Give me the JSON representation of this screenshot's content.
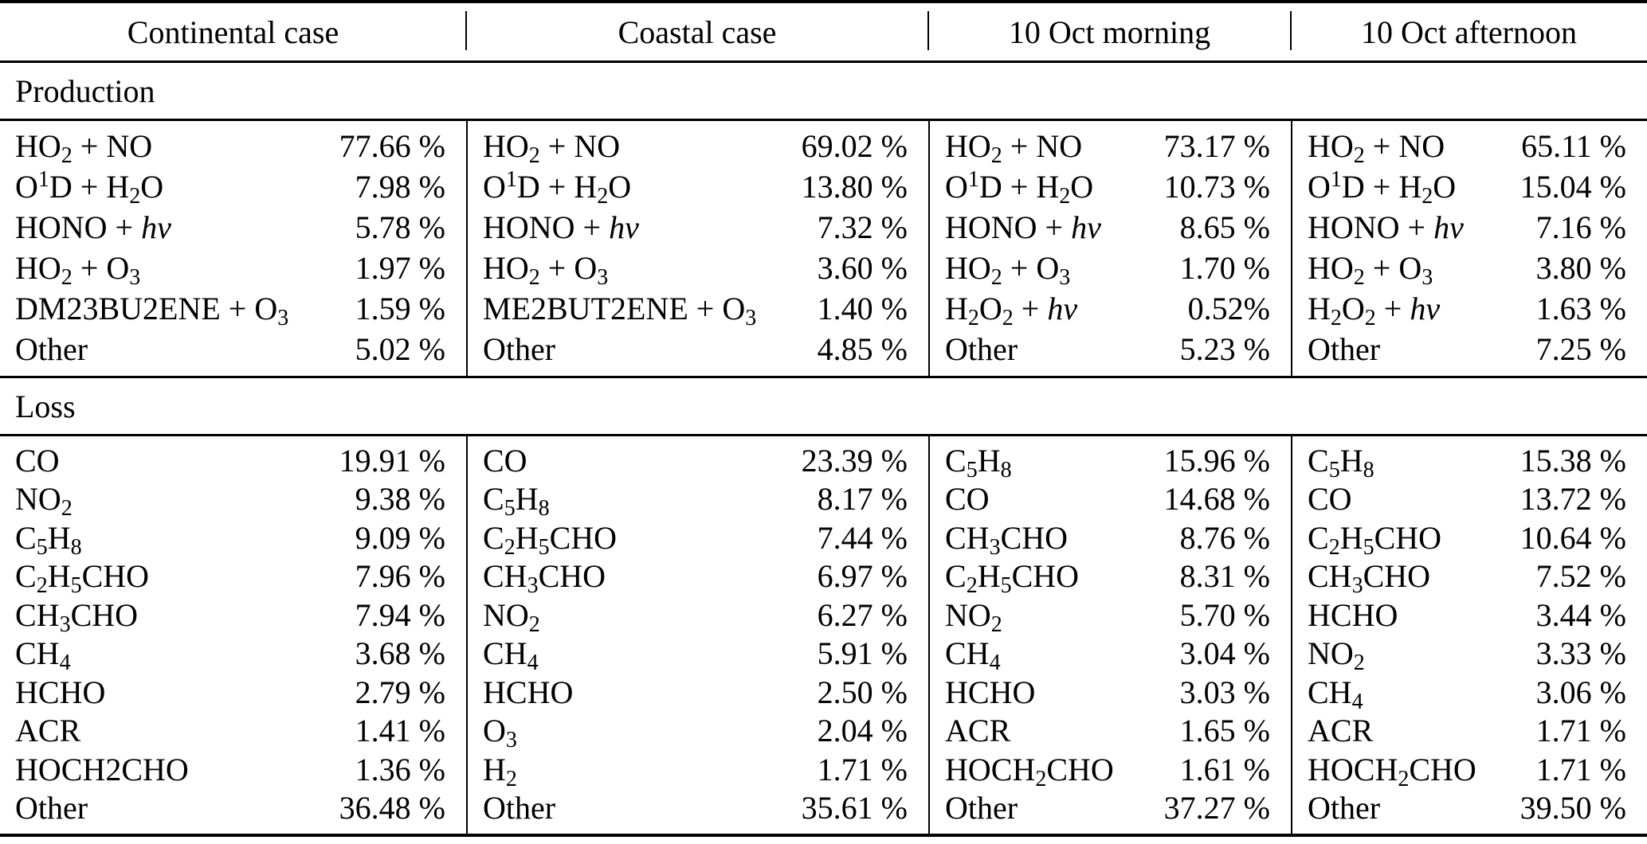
{
  "table": {
    "section_labels": {
      "production": "Production",
      "loss": "Loss"
    },
    "columns": [
      {
        "header": "Continental case",
        "production": [
          {
            "species": "HO_2_ + NO",
            "value": "77.66 %"
          },
          {
            "species": "O^1^D + H_2_O",
            "value": "7.98 %"
          },
          {
            "species": "HONO + *hv*",
            "value": "5.78 %"
          },
          {
            "species": "HO_2_ + O_3_",
            "value": "1.97 %"
          },
          {
            "species": "DM23BU2ENE + O_3_",
            "value": "1.59 %"
          },
          {
            "species": "Other",
            "value": "5.02 %"
          }
        ],
        "loss": [
          {
            "species": "CO",
            "value": "19.91 %"
          },
          {
            "species": "NO_2_",
            "value": "9.38 %"
          },
          {
            "species": "C_5_H_8_",
            "value": "9.09 %"
          },
          {
            "species": "C_2_H_5_CHO",
            "value": "7.96 %"
          },
          {
            "species": "CH_3_CHO",
            "value": "7.94 %"
          },
          {
            "species": "CH_4_",
            "value": "3.68 %"
          },
          {
            "species": "HCHO",
            "value": "2.79 %"
          },
          {
            "species": "ACR",
            "value": "1.41 %"
          },
          {
            "species": "HOCH2CHO",
            "value": "1.36 %"
          },
          {
            "species": "Other",
            "value": "36.48 %"
          }
        ]
      },
      {
        "header": "Coastal case",
        "production": [
          {
            "species": "HO_2_ + NO",
            "value": "69.02 %"
          },
          {
            "species": "O^1^D + H_2_O",
            "value": "13.80 %"
          },
          {
            "species": "HONO + *hv*",
            "value": "7.32 %"
          },
          {
            "species": "HO_2_ + O_3_",
            "value": "3.60 %"
          },
          {
            "species": "ME2BUT2ENE + O_3_",
            "value": "1.40 %"
          },
          {
            "species": "Other",
            "value": "4.85 %"
          }
        ],
        "loss": [
          {
            "species": "CO",
            "value": "23.39 %"
          },
          {
            "species": "C_5_H_8_",
            "value": "8.17 %"
          },
          {
            "species": "C_2_H_5_CHO",
            "value": "7.44 %"
          },
          {
            "species": "CH_3_CHO",
            "value": "6.97 %"
          },
          {
            "species": "NO_2_",
            "value": "6.27 %"
          },
          {
            "species": "CH_4_",
            "value": "5.91 %"
          },
          {
            "species": "HCHO",
            "value": "2.50 %"
          },
          {
            "species": "O_3_",
            "value": "2.04 %"
          },
          {
            "species": "H_2_",
            "value": "1.71 %"
          },
          {
            "species": "Other",
            "value": "35.61 %"
          }
        ]
      },
      {
        "header": "10 Oct morning",
        "production": [
          {
            "species": "HO_2_ + NO",
            "value": "73.17 %"
          },
          {
            "species": "O^1^D + H_2_O",
            "value": "10.73 %"
          },
          {
            "species": "HONO + *hv*",
            "value": "8.65 %"
          },
          {
            "species": "HO_2_ + O_3_",
            "value": "1.70 %"
          },
          {
            "species": "H_2_O_2_ + *hv*",
            "value": "0.52%"
          },
          {
            "species": "Other",
            "value": "5.23 %"
          }
        ],
        "loss": [
          {
            "species": "C_5_H_8_",
            "value": "15.96 %"
          },
          {
            "species": "CO",
            "value": "14.68 %"
          },
          {
            "species": "CH_3_CHO",
            "value": "8.76 %"
          },
          {
            "species": "C_2_H_5_CHO",
            "value": "8.31 %"
          },
          {
            "species": "NO_2_",
            "value": "5.70 %"
          },
          {
            "species": "CH_4_",
            "value": "3.04 %"
          },
          {
            "species": "HCHO",
            "value": "3.03 %"
          },
          {
            "species": "ACR",
            "value": "1.65 %"
          },
          {
            "species": "HOCH_2_CHO",
            "value": "1.61 %"
          },
          {
            "species": "Other",
            "value": "37.27 %"
          }
        ]
      },
      {
        "header": "10 Oct afternoon",
        "production": [
          {
            "species": "HO_2_ + NO",
            "value": "65.11 %"
          },
          {
            "species": "O^1^D + H_2_O",
            "value": "15.04 %"
          },
          {
            "species": "HONO + *hv*",
            "value": "7.16 %"
          },
          {
            "species": "HO_2_ + O_3_",
            "value": "3.80 %"
          },
          {
            "species": "H_2_O_2_ + *hv*",
            "value": "1.63 %"
          },
          {
            "species": "Other",
            "value": "7.25 %"
          }
        ],
        "loss": [
          {
            "species": "C_5_H_8_",
            "value": "15.38 %"
          },
          {
            "species": "CO",
            "value": "13.72 %"
          },
          {
            "species": "C_2_H_5_CHO",
            "value": "10.64 %"
          },
          {
            "species": "CH_3_CHO",
            "value": "7.52 %"
          },
          {
            "species": "HCHO",
            "value": "3.44 %"
          },
          {
            "species": "NO_2_",
            "value": "3.33 %"
          },
          {
            "species": "CH_4_",
            "value": "3.06 %"
          },
          {
            "species": "ACR",
            "value": "1.71 %"
          },
          {
            "species": "HOCH_2_CHO",
            "value": "1.71 %"
          },
          {
            "species": "Other",
            "value": "39.50 %"
          }
        ]
      }
    ]
  }
}
